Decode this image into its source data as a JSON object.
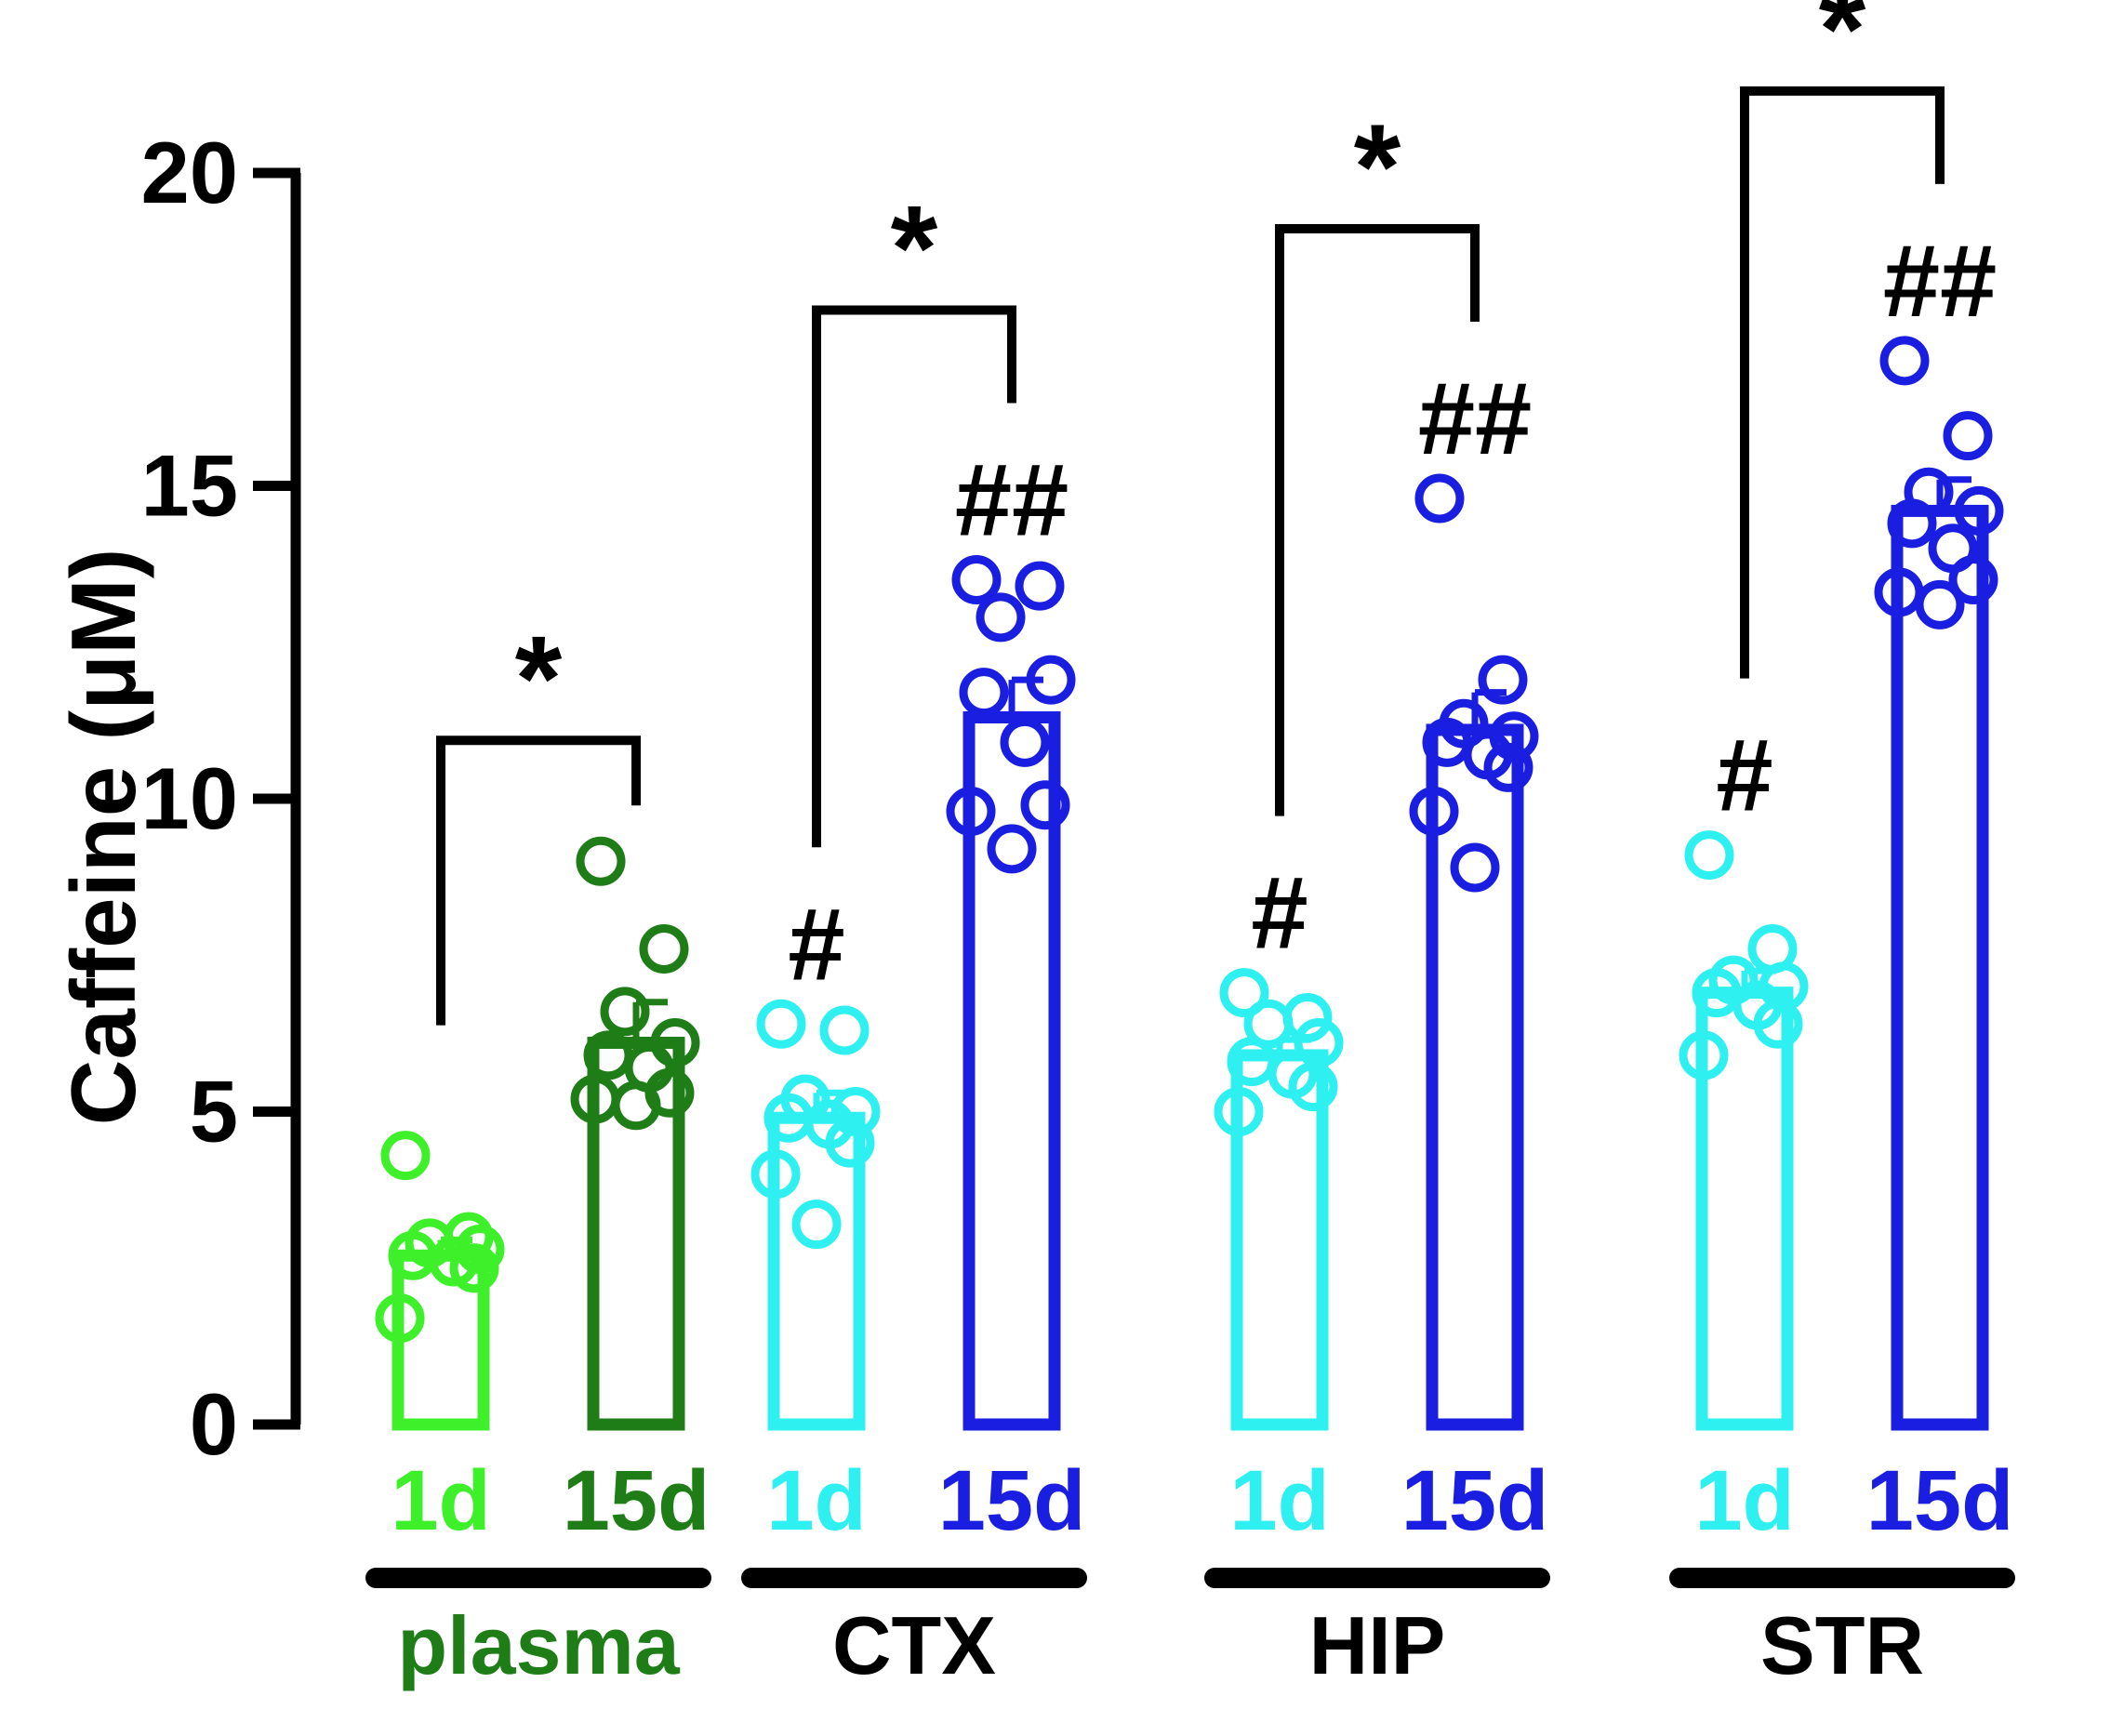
{
  "chart_data": {
    "type": "bar",
    "ylabel": "Caffeine (μM)",
    "ylim": [
      0,
      20
    ],
    "yticks": [
      "0",
      "5",
      "10",
      "15",
      "20"
    ],
    "groups": [
      {
        "name": "plasma",
        "color": "#1e7d16",
        "significance": "*",
        "bars": [
          {
            "label": "1d",
            "color": "#3df02a",
            "mean": 2.7,
            "sem": 0.25,
            "marker": "",
            "points": [
              4.3,
              3.0,
              2.9,
              2.8,
              2.7,
              2.6,
              2.5,
              1.7
            ]
          },
          {
            "label": "15d",
            "color": "#1e7d16",
            "mean": 6.1,
            "sem": 0.65,
            "marker": "",
            "points": [
              9.0,
              7.6,
              6.6,
              6.1,
              5.9,
              5.7,
              5.3,
              5.2,
              5.1
            ]
          }
        ]
      },
      {
        "name": "CTX",
        "color": "#000000",
        "significance": "*",
        "bars": [
          {
            "label": "1d",
            "color": "#2ef0f0",
            "mean": 4.9,
            "sem": 0.4,
            "marker": "#",
            "points": [
              6.4,
              6.3,
              5.2,
              5.0,
              4.9,
              4.8,
              4.5,
              4.0,
              3.2
            ]
          },
          {
            "label": "15d",
            "color": "#1a1ee0",
            "mean": 11.3,
            "sem": 0.6,
            "marker": "##",
            "points": [
              13.5,
              13.4,
              12.9,
              11.9,
              11.7,
              10.9,
              9.9,
              9.8,
              9.2
            ]
          }
        ]
      },
      {
        "name": "HIP",
        "color": "#000000",
        "significance": "*",
        "bars": [
          {
            "label": "1d",
            "color": "#2ef0f0",
            "mean": 5.9,
            "sem": 0.25,
            "marker": "#",
            "points": [
              6.9,
              6.5,
              6.4,
              6.1,
              5.8,
              5.6,
              5.4,
              5.0
            ]
          },
          {
            "label": "15d",
            "color": "#1a1ee0",
            "mean": 11.1,
            "sem": 0.6,
            "marker": "##",
            "points": [
              14.8,
              11.9,
              11.2,
              11.0,
              10.9,
              10.7,
              10.5,
              9.8,
              8.9
            ]
          }
        ]
      },
      {
        "name": "STR",
        "color": "#000000",
        "significance": "*",
        "bars": [
          {
            "label": "1d",
            "color": "#2ef0f0",
            "mean": 6.9,
            "sem": 0.35,
            "marker": "#",
            "points": [
              9.1,
              7.6,
              7.1,
              7.0,
              6.9,
              6.7,
              6.4,
              5.9
            ]
          },
          {
            "label": "15d",
            "color": "#1a1ee0",
            "mean": 14.6,
            "sem": 0.5,
            "marker": "##",
            "points": [
              17.0,
              15.8,
              14.9,
              14.6,
              14.4,
              14.0,
              13.5,
              13.3,
              13.1
            ]
          }
        ]
      }
    ]
  }
}
